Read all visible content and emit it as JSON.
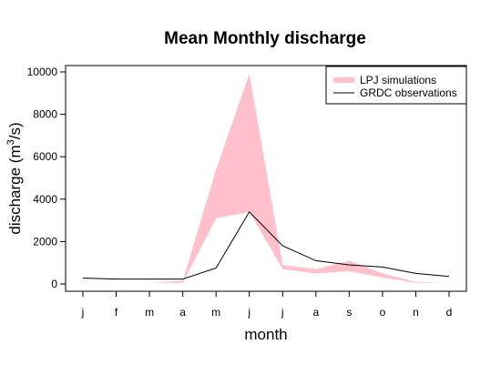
{
  "chart_data": {
    "type": "area",
    "title": "Mean Monthly discharge",
    "xlabel": "month",
    "ylabel_main": "discharge (m",
    "ylabel_sup": "3",
    "ylabel_end": "/s)",
    "categories": [
      "j",
      "f",
      "m",
      "a",
      "m",
      "j",
      "j",
      "a",
      "s",
      "o",
      "n",
      "d"
    ],
    "yticks": [
      0,
      2000,
      4000,
      6000,
      8000,
      10000
    ],
    "ylim": [
      -250,
      10250
    ],
    "grid": false,
    "legend_position": "top-right",
    "series": [
      {
        "name": "LPJ simulations",
        "kind": "band",
        "color": "#ffc0cb",
        "lower": [
          50,
          50,
          50,
          50,
          3100,
          3400,
          700,
          500,
          600,
          300,
          50,
          50
        ],
        "upper": [
          50,
          50,
          50,
          150,
          5400,
          9900,
          900,
          700,
          1100,
          500,
          100,
          50
        ]
      },
      {
        "name": "GRDC observations",
        "kind": "line",
        "color": "#000000",
        "values": [
          280,
          230,
          230,
          230,
          750,
          3400,
          1800,
          1100,
          900,
          800,
          500,
          350
        ]
      }
    ]
  }
}
